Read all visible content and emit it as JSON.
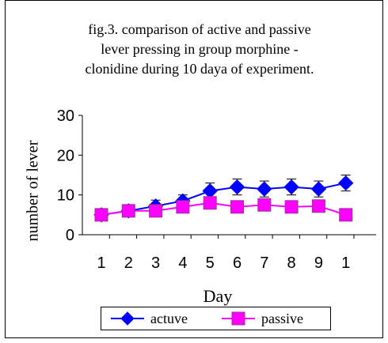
{
  "chart_data": {
    "type": "line",
    "title_lines": [
      "fig.3. comparison of active and passive",
      "lever pressing in group morphine -",
      "clonidine during 10 daya of experiment."
    ],
    "xlabel": "Day",
    "ylabel": "number of lever",
    "categories": [
      "1",
      "2",
      "3",
      "4",
      "5",
      "6",
      "7",
      "8",
      "9",
      "1"
    ],
    "y_ticks": [
      "0",
      "10",
      "20",
      "30"
    ],
    "ylim": [
      0,
      30
    ],
    "grid": false,
    "legend_position": "bottom",
    "series": [
      {
        "name": "actuve",
        "color": "#0000FF",
        "marker": "diamond",
        "values": [
          5,
          6,
          7.2,
          8.5,
          11,
          12,
          11.5,
          12,
          11.5,
          13
        ],
        "errors": [
          1.2,
          1.2,
          1.5,
          1.5,
          2,
          2,
          2,
          2,
          2,
          2
        ]
      },
      {
        "name": "passive",
        "color": "#FF00FF",
        "marker": "square",
        "values": [
          5,
          6,
          6,
          7,
          8,
          7,
          7.5,
          7,
          7.2,
          5
        ],
        "errors": [
          0,
          0,
          0,
          0,
          0,
          0,
          0,
          0,
          0,
          0
        ]
      }
    ]
  }
}
